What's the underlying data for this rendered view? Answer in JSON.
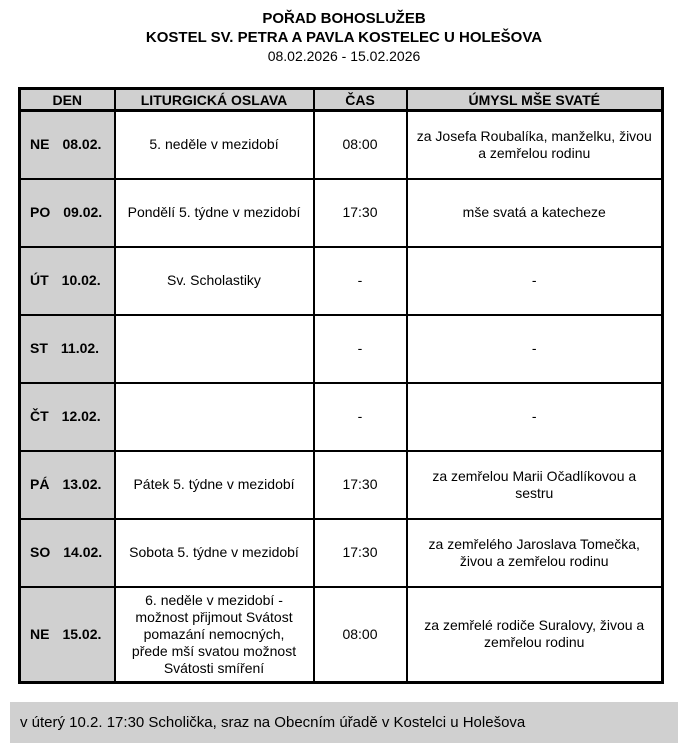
{
  "header": {
    "title": "POŘAD BOHOSLUŽEB",
    "subtitle": "KOSTEL SV. PETRA A PAVLA KOSTELEC U HOLEŠOVA",
    "date_range": "08.02.2026 - 15.02.2026"
  },
  "table": {
    "headers": [
      "DEN",
      "LITURGICKÁ OSLAVA",
      "ČAS",
      "ÚMYSL MŠE SVATÉ"
    ],
    "rows": [
      {
        "day": "NE",
        "date": "08.02.",
        "celebration": "5. neděle v mezidobí",
        "time": "08:00",
        "intention": "za Josefa Roubalíka, manželku, živou a zemřelou rodinu"
      },
      {
        "day": "PO",
        "date": "09.02.",
        "celebration": "Pondělí 5. týdne v mezidobí",
        "time": "17:30",
        "intention": "mše svatá a katecheze"
      },
      {
        "day": "ÚT",
        "date": "10.02.",
        "celebration": "Sv. Scholastiky",
        "time": "-",
        "intention": "-"
      },
      {
        "day": "ST",
        "date": "11.02.",
        "celebration": "",
        "time": "-",
        "intention": "-"
      },
      {
        "day": "ČT",
        "date": "12.02.",
        "celebration": "",
        "time": "-",
        "intention": "-"
      },
      {
        "day": "PÁ",
        "date": "13.02.",
        "celebration": "Pátek 5. týdne v mezidobí",
        "time": "17:30",
        "intention": "za zemřelou Marii Očadlíkovou a sestru"
      },
      {
        "day": "SO",
        "date": "14.02.",
        "celebration": "Sobota 5. týdne v mezidobí",
        "time": "17:30",
        "intention": "za zemřelého Jaroslava Tomečka, živou a zemřelou rodinu"
      },
      {
        "day": "NE",
        "date": "15.02.",
        "celebration": "6. neděle v mezidobí - možnost přijmout Svátost pomazání nemocných, přede mší svatou možnost Svátosti smíření",
        "time": "08:00",
        "intention": "za zemřelé rodiče Suralovy, živou a zemřelou rodinu"
      }
    ]
  },
  "footer": {
    "note": "v úterý 10.2. 17:30 Scholička, sraz na Obecním úřadě v Kostelci u Holešova"
  },
  "colors": {
    "header_row_bg": "#d0d0d0",
    "day_column_bg": "#d0d0d0",
    "footer_bg": "#d0d0d0",
    "border": "#000000",
    "background": "#ffffff",
    "text": "#000000"
  }
}
